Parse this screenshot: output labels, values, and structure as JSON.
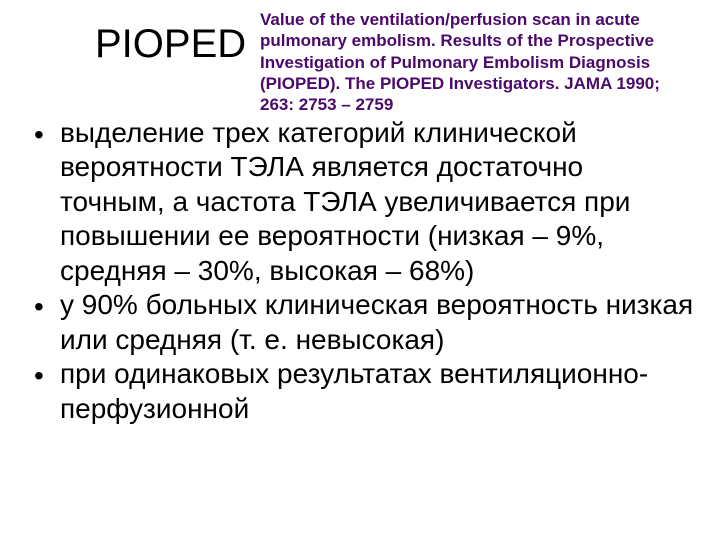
{
  "colors": {
    "citation": "#4b0a6b",
    "bodyText": "#000000",
    "background": "#ffffff"
  },
  "title": "PIOPED",
  "citation": "Value of the ventilation/perfusion scan in acute pulmonary embolism. Results of the Prospective Investigation of Pulmonary Embolism Diagnosis (PIOPED). The PIOPED Investigators. JAMA 1990; 263: 2753 – 2759",
  "bullets": [
    " выделение  трех категорий клинической вероятности ТЭЛА является достаточно точным, а частота ТЭЛА увеличивается при повышении ее вероятности (низкая – 9%, средняя – 30%, высокая – 68%)",
    " у 90% больных клиническая вероятность низкая или средняя (т. е. невысокая)",
    "при одинаковых результатах вентиляционно-перфузионной"
  ],
  "bulletChar": "•",
  "font": {
    "title_size": 40,
    "citation_size": 17,
    "body_size": 28
  }
}
